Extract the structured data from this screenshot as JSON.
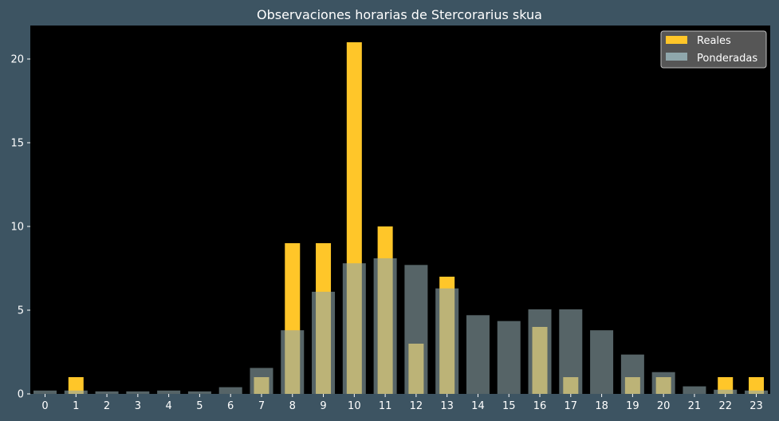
{
  "chart_data": {
    "type": "bar",
    "title": "Observaciones horarias de Stercorarius skua",
    "xlabel": "",
    "ylabel": "",
    "categories": [
      "0",
      "1",
      "2",
      "3",
      "4",
      "5",
      "6",
      "7",
      "8",
      "9",
      "10",
      "11",
      "12",
      "13",
      "14",
      "15",
      "16",
      "17",
      "18",
      "19",
      "20",
      "21",
      "22",
      "23"
    ],
    "ylim": [
      0,
      22
    ],
    "yticks": [
      0,
      5,
      10,
      15,
      20
    ],
    "grid": false,
    "legend_position": "top-right",
    "series": [
      {
        "name": "Reales",
        "color": "#ffc629",
        "values": [
          0,
          1,
          0,
          0,
          0,
          0,
          0,
          1,
          9,
          9,
          21,
          10,
          3,
          7,
          0,
          0,
          4,
          1,
          0,
          1,
          1,
          0,
          1,
          1
        ]
      },
      {
        "name": "Ponderadas",
        "color": "#8fa7ac",
        "values": [
          0.2,
          0.2,
          0.15,
          0.15,
          0.2,
          0.15,
          0.4,
          1.55,
          3.8,
          6.1,
          7.8,
          8.1,
          7.7,
          6.3,
          4.7,
          4.35,
          5.05,
          5.05,
          3.8,
          2.35,
          1.3,
          0.45,
          0.25,
          0.2
        ]
      }
    ]
  }
}
